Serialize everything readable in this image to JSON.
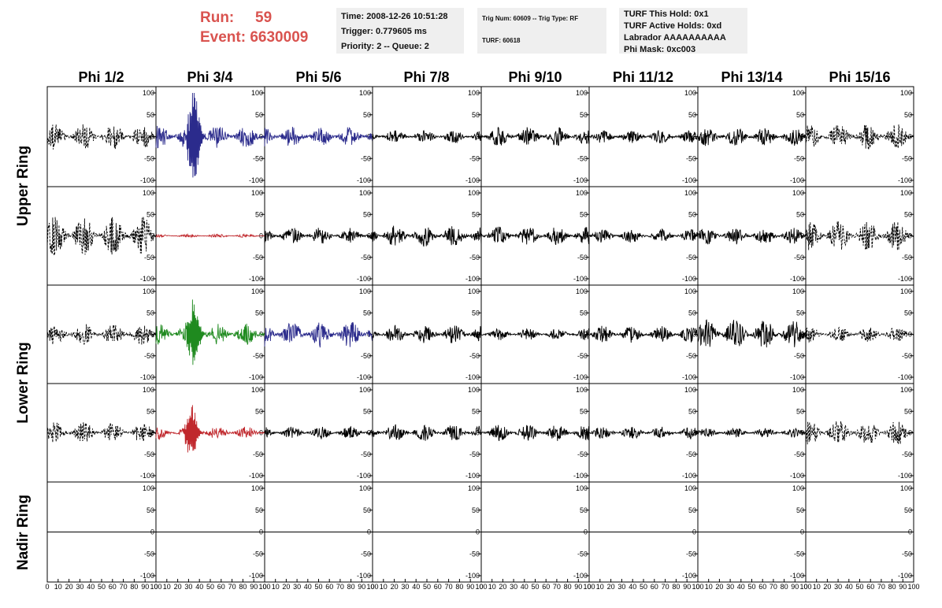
{
  "header": {
    "run_label": "Run:",
    "run_value": "59",
    "event_label": "Event:",
    "event_value": "6630009",
    "info_time": [
      "Time: 2008-12-26 10:51:28",
      "Trigger: 0.779605 ms",
      "Priority: 2 -- Queue: 2"
    ],
    "info_trig": [
      "Trig Num: 60609 -- Trig Type: RF",
      "TURF: 60618"
    ],
    "info_turf": [
      "TURF This Hold: 0x1",
      "TURF Active Holds: 0xd",
      "Labrador AAAAAAAAAA",
      "Phi Mask: 0xc003"
    ]
  },
  "colors": {
    "accent": "#d9534f",
    "black": "#000000",
    "blue": "#2b2b8c",
    "red": "#c0282d",
    "green": "#1f8a1f"
  },
  "chart_data": {
    "type": "line",
    "columns": [
      "Phi 1/2",
      "Phi 3/4",
      "Phi 5/6",
      "Phi 7/8",
      "Phi 9/10",
      "Phi 11/12",
      "Phi 13/14",
      "Phi 15/16"
    ],
    "rows": [
      "Upper Ring",
      "Upper Ring",
      "Lower Ring",
      "Lower Ring",
      "Nadir Ring"
    ],
    "row_titles": [
      {
        "label": "Upper Ring",
        "rows": [
          0,
          1
        ]
      },
      {
        "label": "Lower Ring",
        "rows": [
          2,
          3
        ]
      },
      {
        "label": "Nadir Ring",
        "rows": [
          4
        ]
      }
    ],
    "ylim": [
      -100,
      100
    ],
    "yticks": [
      -100,
      -50,
      0,
      50,
      100
    ],
    "xlim": [
      0,
      100
    ],
    "xtick_labels": [
      "0",
      "10",
      "20",
      "30",
      "40",
      "50",
      "60",
      "70",
      "80",
      "90",
      "100"
    ],
    "panels": [
      [
        {
          "style": "dashed",
          "color": "black",
          "amp": 30,
          "spike": null
        },
        {
          "style": "solid",
          "color": "blue",
          "amp": 28,
          "spike": {
            "x": 35,
            "amp": 100
          }
        },
        {
          "style": "solid",
          "color": "blue",
          "amp": 24,
          "spike": null
        },
        {
          "style": "solid",
          "color": "black",
          "amp": 15,
          "spike": null
        },
        {
          "style": "solid",
          "color": "black",
          "amp": 22,
          "spike": null
        },
        {
          "style": "solid",
          "color": "black",
          "amp": 15,
          "spike": null
        },
        {
          "style": "solid",
          "color": "black",
          "amp": 22,
          "spike": null
        },
        {
          "style": "dashed",
          "color": "black",
          "amp": 30,
          "spike": null
        }
      ],
      [
        {
          "style": "dashed",
          "color": "black",
          "amp": 45,
          "spike": null
        },
        {
          "style": "solid",
          "color": "red",
          "amp": 4,
          "spike": null
        },
        {
          "style": "solid",
          "color": "black",
          "amp": 20,
          "spike": null
        },
        {
          "style": "solid",
          "color": "black",
          "amp": 25,
          "spike": null
        },
        {
          "style": "solid",
          "color": "black",
          "amp": 22,
          "spike": null
        },
        {
          "style": "solid",
          "color": "black",
          "amp": 16,
          "spike": null
        },
        {
          "style": "solid",
          "color": "black",
          "amp": 20,
          "spike": null
        },
        {
          "style": "dashed",
          "color": "black",
          "amp": 35,
          "spike": null
        }
      ],
      [
        {
          "style": "dashed",
          "color": "black",
          "amp": 25,
          "spike": null
        },
        {
          "style": "solid",
          "color": "green",
          "amp": 25,
          "spike": {
            "x": 35,
            "amp": 70
          }
        },
        {
          "style": "solid",
          "color": "blue",
          "amp": 32,
          "spike": null
        },
        {
          "style": "solid",
          "color": "black",
          "amp": 22,
          "spike": null
        },
        {
          "style": "solid",
          "color": "black",
          "amp": 14,
          "spike": null
        },
        {
          "style": "solid",
          "color": "black",
          "amp": 20,
          "spike": null
        },
        {
          "style": "solid",
          "color": "black",
          "amp": 35,
          "spike": null
        },
        {
          "style": "dashed",
          "color": "black",
          "amp": 18,
          "spike": null
        }
      ],
      [
        {
          "style": "dashed",
          "color": "black",
          "amp": 25,
          "spike": null
        },
        {
          "style": "solid",
          "color": "red",
          "amp": 15,
          "spike": {
            "x": 33,
            "amp": 55
          }
        },
        {
          "style": "solid",
          "color": "black",
          "amp": 15,
          "spike": null
        },
        {
          "style": "solid",
          "color": "black",
          "amp": 20,
          "spike": null
        },
        {
          "style": "solid",
          "color": "black",
          "amp": 20,
          "spike": null
        },
        {
          "style": "solid",
          "color": "black",
          "amp": 15,
          "spike": null
        },
        {
          "style": "solid",
          "color": "black",
          "amp": 12,
          "spike": null
        },
        {
          "style": "dashed",
          "color": "black",
          "amp": 30,
          "spike": null
        }
      ],
      [
        {
          "style": "flat",
          "color": "black",
          "amp": 0,
          "spike": null
        },
        {
          "style": "flat",
          "color": "black",
          "amp": 0,
          "spike": null
        },
        {
          "style": "flat",
          "color": "black",
          "amp": 0,
          "spike": null
        },
        {
          "style": "flat",
          "color": "black",
          "amp": 0,
          "spike": null
        },
        {
          "style": "flat",
          "color": "black",
          "amp": 0,
          "spike": null
        },
        {
          "style": "flat",
          "color": "black",
          "amp": 0,
          "spike": null
        },
        {
          "style": "flat",
          "color": "black",
          "amp": 0,
          "spike": null
        },
        {
          "style": "flat",
          "color": "black",
          "amp": 0,
          "spike": null
        }
      ]
    ]
  }
}
